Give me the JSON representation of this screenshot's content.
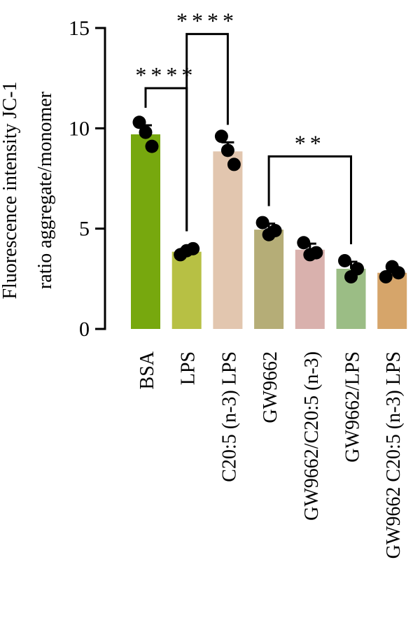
{
  "chart_data": {
    "type": "bar",
    "ylabel_lines": [
      "Fluorescence intensity JC-1",
      "ratio aggregate/monomer"
    ],
    "xlabel": "",
    "ylim": [
      0,
      15
    ],
    "yticks": [
      0,
      5,
      10,
      15
    ],
    "categories": [
      "BSA",
      "LPS",
      "C20:5 (n-3) LPS",
      "GW9662",
      "GW9662/C20:5 (n-3)",
      "GW9662/LPS",
      "GW9662 C20:5 (n-3) LPS"
    ],
    "values": [
      9.7,
      3.85,
      8.85,
      4.95,
      3.95,
      3.0,
      2.8
    ],
    "errors": [
      0.45,
      0.15,
      0.45,
      0.3,
      0.3,
      0.35,
      0.25
    ],
    "points": [
      [
        10.3,
        9.8,
        9.1
      ],
      [
        3.7,
        3.9,
        4.0
      ],
      [
        9.6,
        8.9,
        8.2
      ],
      [
        5.3,
        4.7,
        4.9
      ],
      [
        4.3,
        3.7,
        3.8
      ],
      [
        3.4,
        2.6,
        3.0
      ],
      [
        2.6,
        3.1,
        2.8
      ]
    ],
    "bar_colors": [
      "#77a80e",
      "#b7c044",
      "#e2c6af",
      "#b5ad77",
      "#d9b1ad",
      "#9bbd85",
      "#d6a56a"
    ],
    "significance": [
      {
        "from": 0,
        "to": 1,
        "label": "****",
        "y": 12.0
      },
      {
        "from": 1,
        "to": 2,
        "label": "****",
        "y": 14.7
      },
      {
        "from": 3,
        "to": 5,
        "label": "**",
        "y": 8.6
      }
    ],
    "grid": false,
    "legend": "none"
  }
}
